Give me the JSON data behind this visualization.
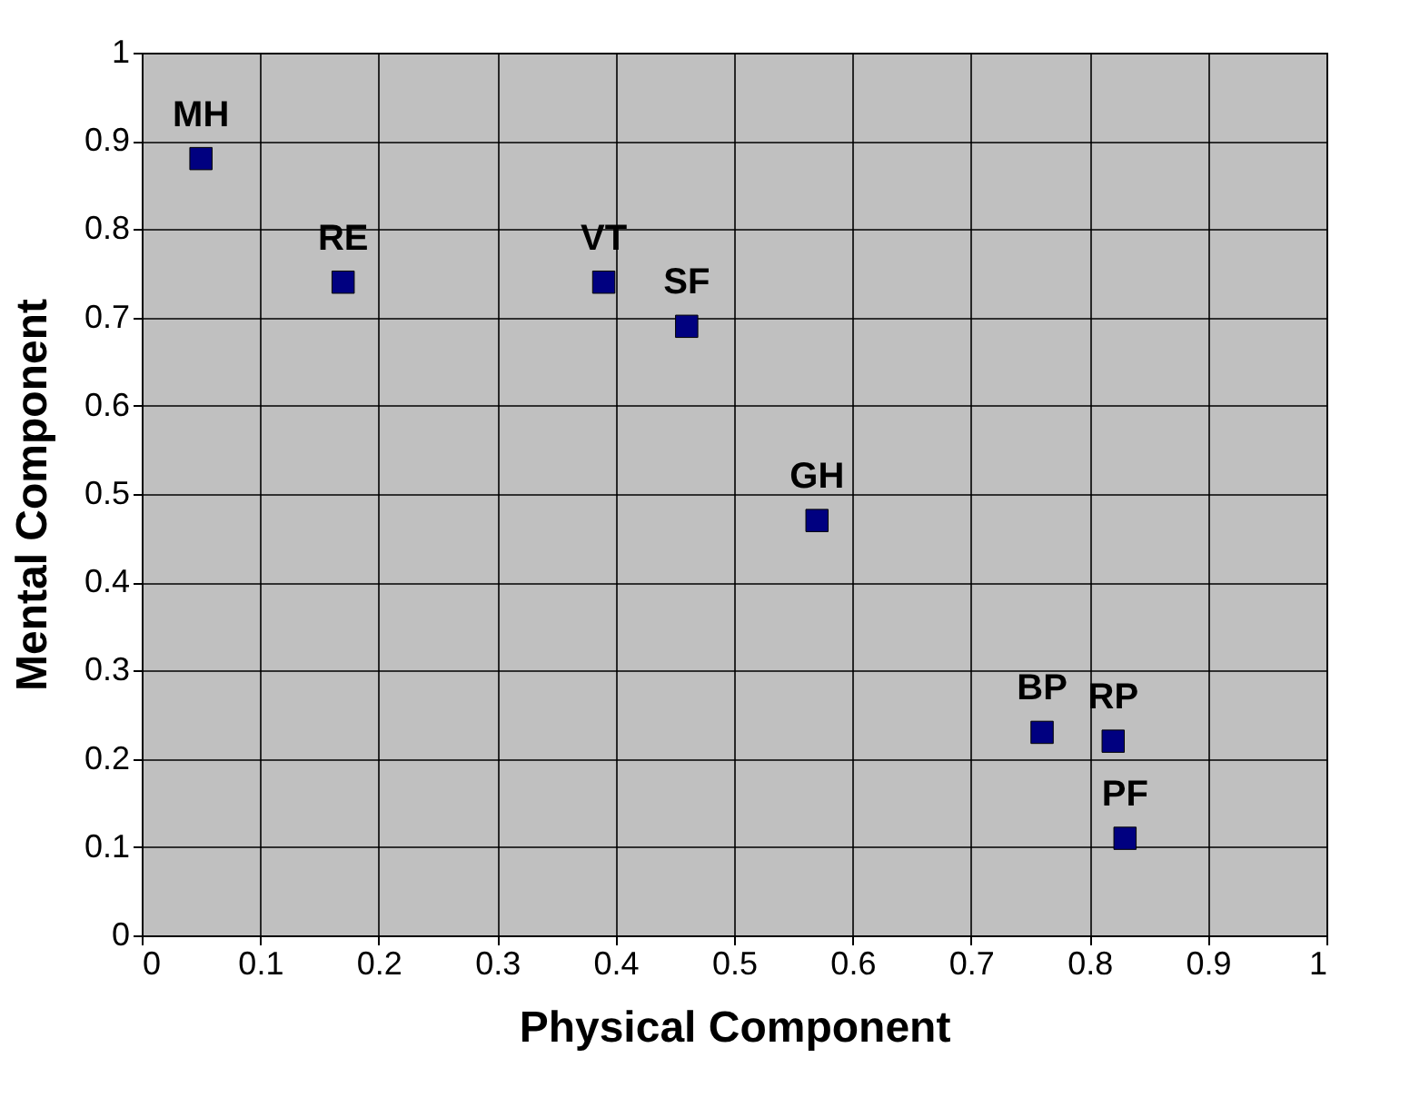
{
  "chart_data": {
    "type": "scatter",
    "xlabel": "Physical Component",
    "ylabel": "Mental Component",
    "x": [
      0.05,
      0.17,
      0.39,
      0.46,
      0.57,
      0.76,
      0.82,
      0.83
    ],
    "series": [
      {
        "color": "#000080",
        "values": [
          0.88,
          0.74,
          0.74,
          0.69,
          0.47,
          0.23,
          0.22,
          0.11
        ]
      }
    ],
    "xlim": [
      0,
      1
    ],
    "ylim": [
      0,
      1
    ],
    "xticks": [
      0,
      0.1,
      0.2,
      0.3,
      0.4,
      0.5,
      0.6,
      0.7,
      0.8,
      0.9,
      1
    ],
    "yticks": [
      0,
      0.1,
      0.2,
      0.3,
      0.4,
      0.5,
      0.6,
      0.7,
      0.8,
      0.9,
      1
    ],
    "annotations": [
      {
        "text": "MH",
        "x": 0.05,
        "y": 0.88
      },
      {
        "text": "RE",
        "x": 0.17,
        "y": 0.74
      },
      {
        "text": "VT",
        "x": 0.39,
        "y": 0.74
      },
      {
        "text": "SF",
        "x": 0.46,
        "y": 0.69
      },
      {
        "text": "GH",
        "x": 0.57,
        "y": 0.47
      },
      {
        "text": "BP",
        "x": 0.76,
        "y": 0.23
      },
      {
        "text": "RP",
        "x": 0.82,
        "y": 0.22
      },
      {
        "text": "PF",
        "x": 0.83,
        "y": 0.11
      }
    ],
    "grid": true,
    "marker": "square"
  }
}
